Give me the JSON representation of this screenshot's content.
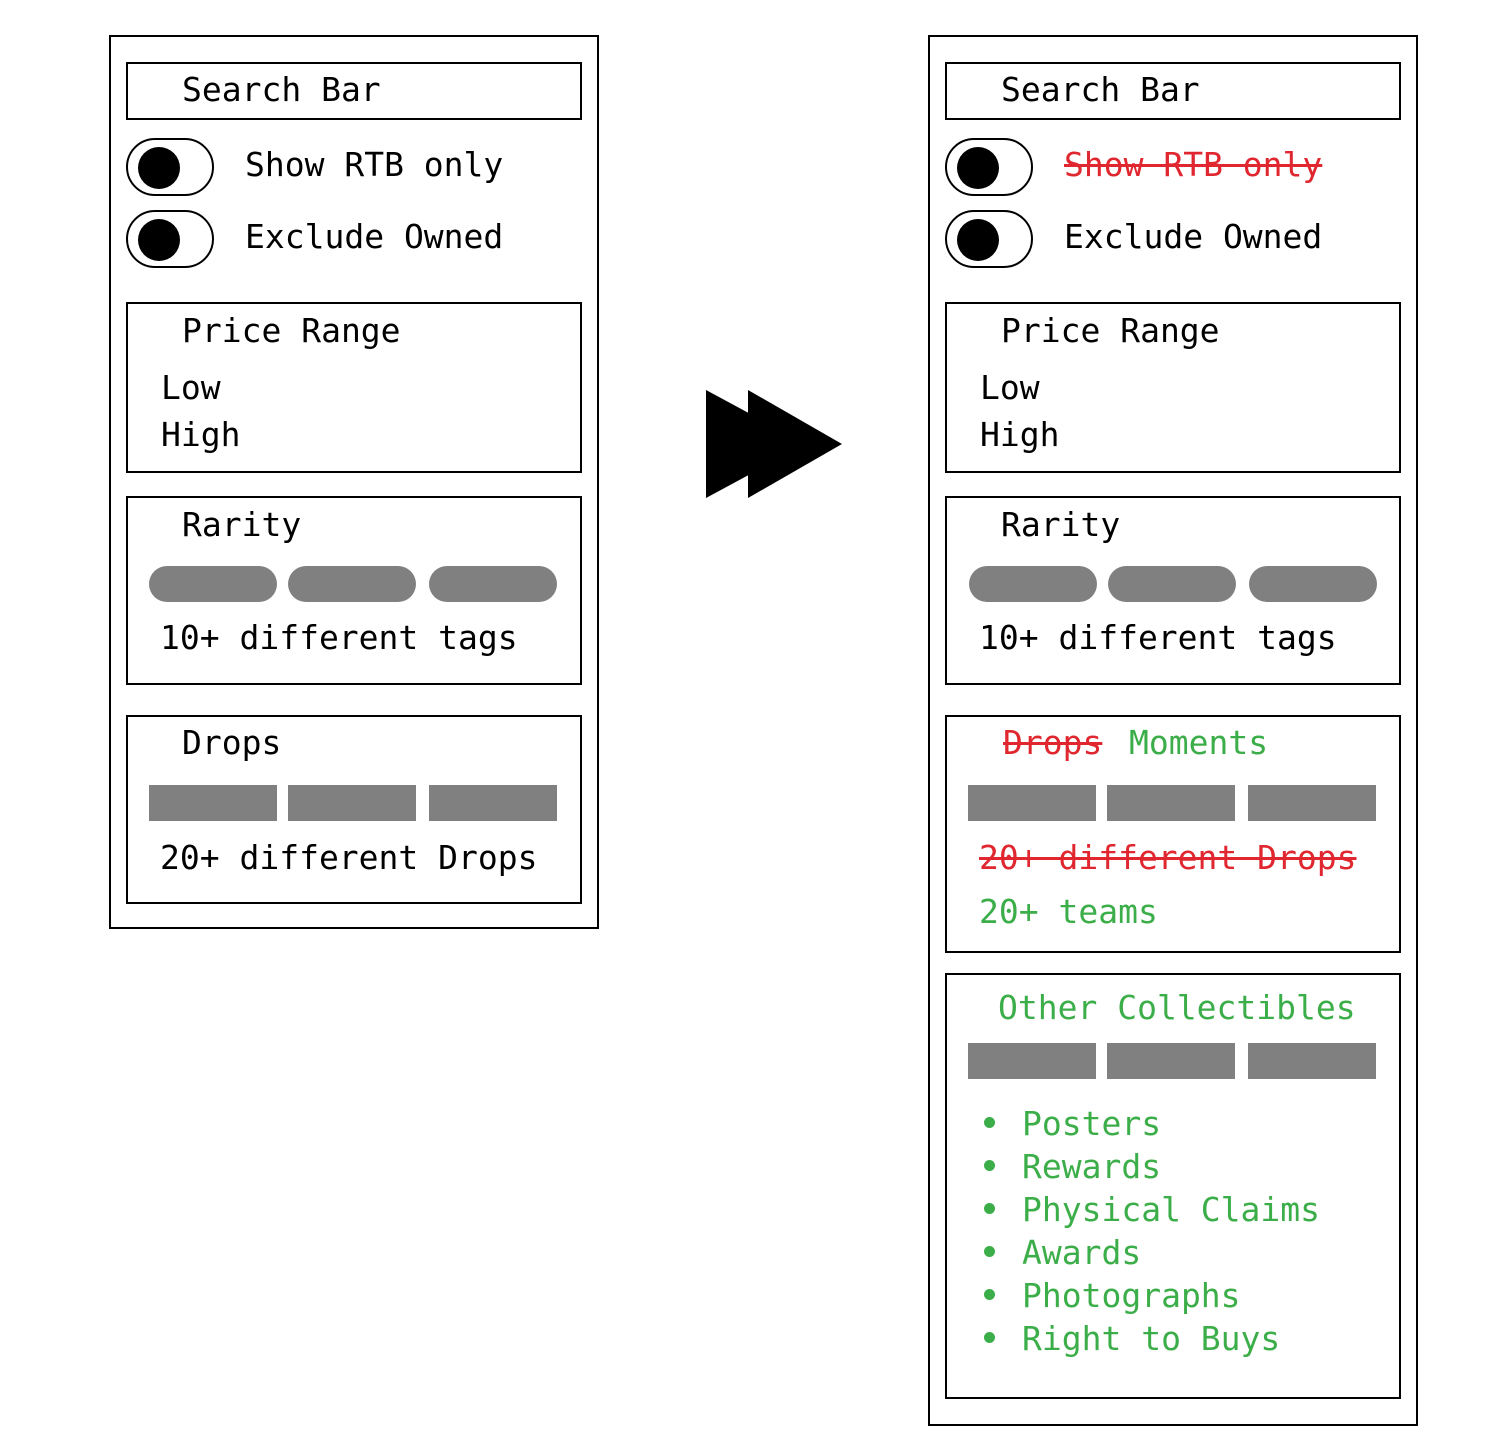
{
  "colors": {
    "removed": "#e0262f",
    "added": "#3cae49",
    "placeholder": "#808080"
  },
  "before": {
    "search_label": "Search Bar",
    "toggles": [
      "Show RTB only",
      "Exclude Owned"
    ],
    "price": {
      "title": "Price Range",
      "low": "Low",
      "high": "High"
    },
    "rarity": {
      "title": "Rarity",
      "caption": "10+ different tags"
    },
    "drops": {
      "title": "Drops",
      "caption": "20+ different Drops"
    }
  },
  "after": {
    "search_label": "Search Bar",
    "toggles": [
      "Show RTB only",
      "Exclude Owned"
    ],
    "price": {
      "title": "Price Range",
      "low": "Low",
      "high": "High"
    },
    "rarity": {
      "title": "Rarity",
      "caption": "10+ different tags"
    },
    "moments": {
      "removed_title": "Drops",
      "added_title": "Moments",
      "removed_caption": "20+ different Drops",
      "added_caption": "20+ teams"
    },
    "other": {
      "title": "Other Collectibles",
      "items": [
        "Posters",
        "Rewards",
        "Physical Claims",
        "Awards",
        "Photographs",
        "Right to Buys"
      ]
    }
  }
}
